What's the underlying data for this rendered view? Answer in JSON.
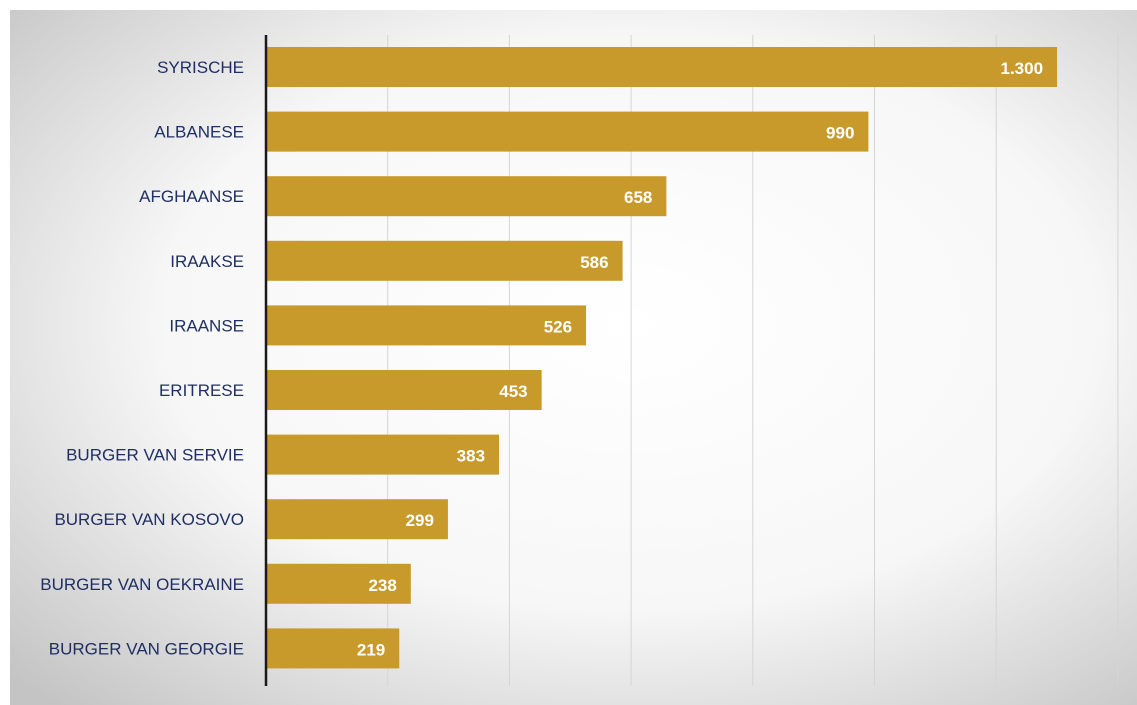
{
  "chart_data": {
    "type": "bar",
    "orientation": "horizontal",
    "title": "",
    "xlabel": "",
    "ylabel": "",
    "categories": [
      "SYRISCHE",
      "ALBANESE",
      "AFGHAANSE",
      "IRAAKSE",
      "IRAANSE",
      "ERITRESE",
      "BURGER VAN SERVIE",
      "BURGER VAN KOSOVO",
      "BURGER VAN OEKRAINE",
      "BURGER VAN GEORGIE"
    ],
    "values": [
      1300,
      990,
      658,
      586,
      526,
      453,
      383,
      299,
      238,
      219
    ],
    "value_labels": [
      "1.300",
      "990",
      "658",
      "586",
      "526",
      "453",
      "383",
      "299",
      "238",
      "219"
    ],
    "xlim": [
      0,
      1400
    ],
    "grid_step": 200,
    "grid": true,
    "legend": "none",
    "colors": {
      "bar": "#c79a2b",
      "value_text": "#ffffff",
      "category_text": "#1f2f63",
      "background_edge": "#c8c8c8",
      "background_center": "#ffffff"
    }
  }
}
